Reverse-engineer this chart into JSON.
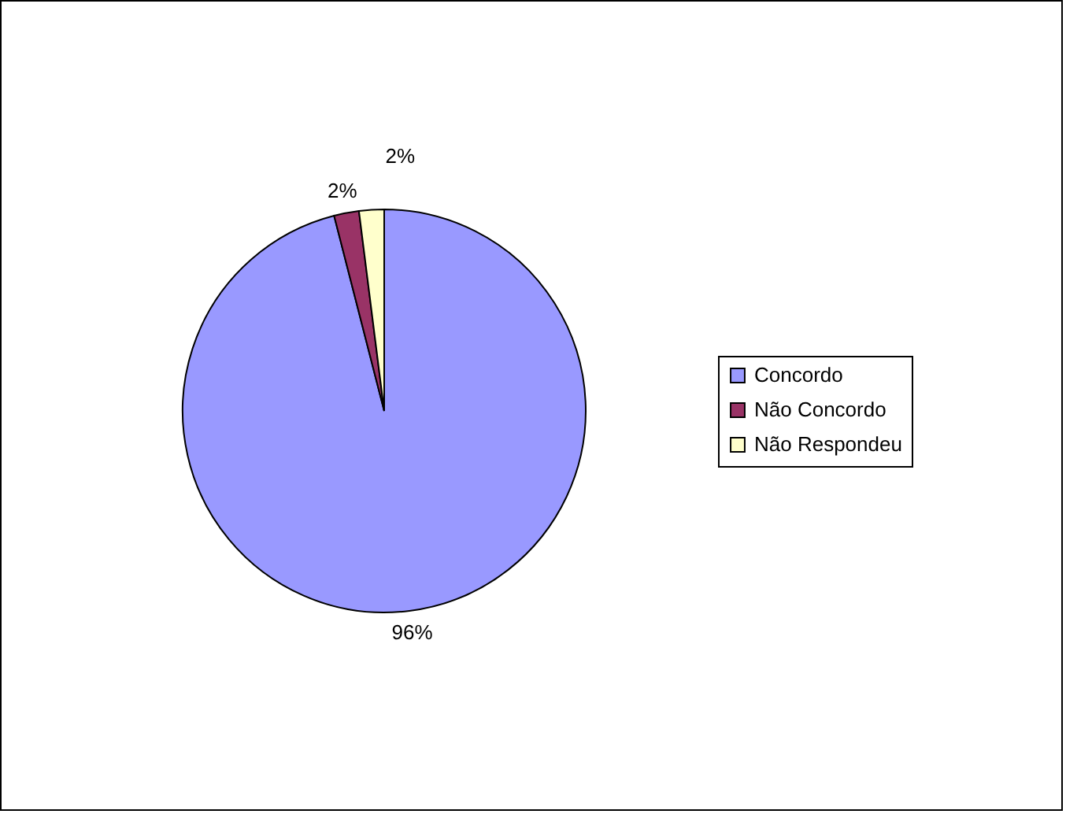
{
  "chart_data": {
    "type": "pie",
    "categories": [
      "Concordo",
      "Não Concordo",
      "Não Respondeu"
    ],
    "values": [
      96,
      2,
      2
    ],
    "colors": [
      "#9999ff",
      "#993366",
      "#ffffcc"
    ],
    "value_labels": [
      "96%",
      "2%",
      "2%"
    ],
    "legend": "right"
  }
}
